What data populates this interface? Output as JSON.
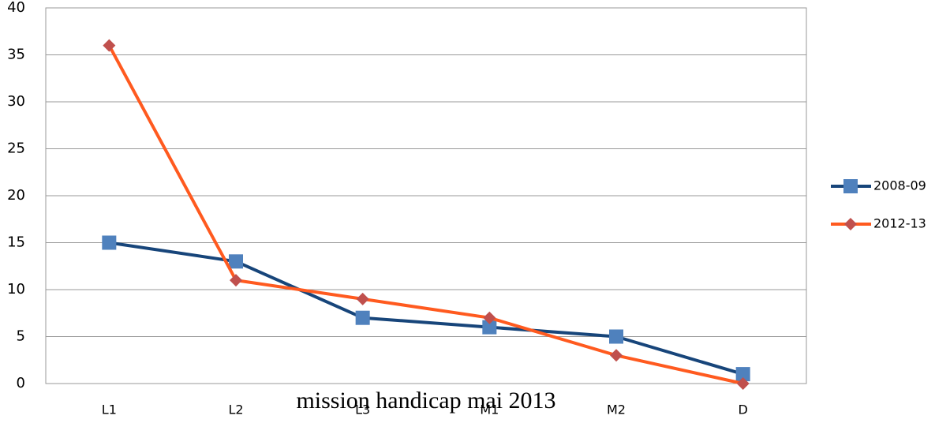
{
  "chart_data": {
    "type": "line",
    "categories": [
      "L1",
      "L2",
      "L3",
      "M1",
      "M2",
      "D"
    ],
    "series": [
      {
        "name": "2008-09",
        "color": "#17457a",
        "marker_color": "#4f81bd",
        "marker": "square",
        "values": [
          15,
          13,
          7,
          6,
          5,
          1
        ]
      },
      {
        "name": "2012-13",
        "color": "#ff5a1f",
        "marker_color": "#c0504d",
        "marker": "diamond",
        "values": [
          36,
          11,
          9,
          7,
          3,
          0
        ]
      }
    ],
    "ylim": [
      0,
      40
    ],
    "yticks": [
      0,
      5,
      10,
      15,
      20,
      25,
      30,
      35,
      40
    ],
    "grid": true,
    "legend": "right",
    "annotation": "mission handicap mai 2013"
  }
}
